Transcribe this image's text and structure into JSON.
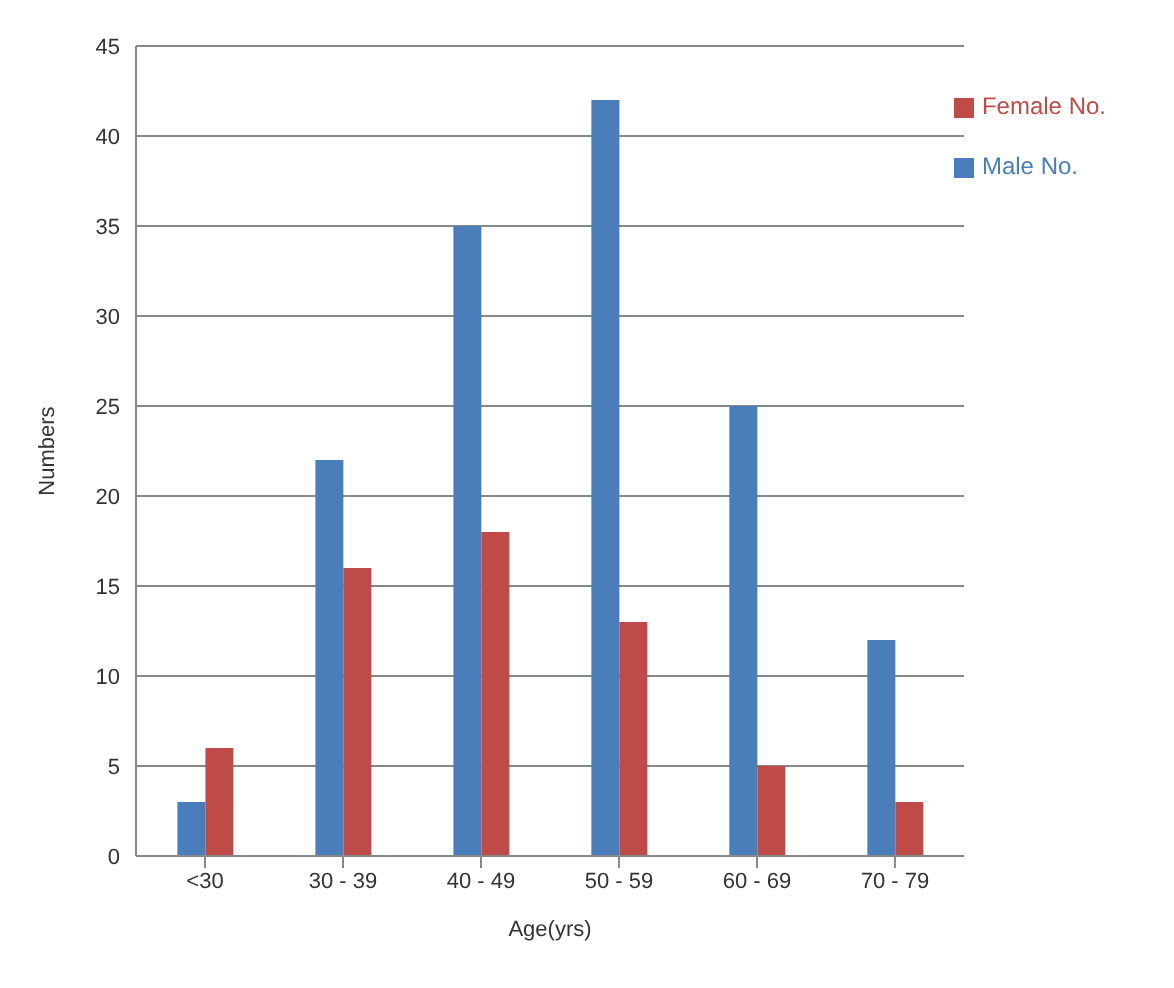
{
  "chart_data": {
    "type": "bar",
    "xlabel": "Age(yrs)",
    "ylabel": "Numbers",
    "categories": [
      "<30",
      "30 - 39",
      "40 - 49",
      "50 - 59",
      "60 - 69",
      "70 - 79"
    ],
    "series": [
      {
        "name": "Male No.",
        "color": "#4a7ebb",
        "values": [
          3,
          22,
          35,
          42,
          25,
          12
        ]
      },
      {
        "name": "Female No.",
        "color": "#be4b48",
        "values": [
          6,
          16,
          18,
          13,
          5,
          3
        ]
      }
    ],
    "ylim": [
      0,
      45
    ],
    "yticks": [
      0,
      5,
      10,
      15,
      20,
      25,
      30,
      35,
      40,
      45
    ],
    "grid": "y",
    "legend": "top right"
  }
}
